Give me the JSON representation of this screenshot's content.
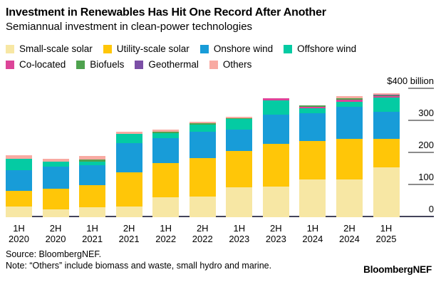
{
  "header": {
    "title": "Investment in Renewables Has Hit One Record After Another",
    "subtitle": "Semiannual investment in clean-power technologies"
  },
  "chart_data": {
    "type": "bar",
    "stacked": true,
    "unit": "$ billion",
    "title": "Investment in Renewables Has Hit One Record After Another",
    "subtitle": "Semiannual investment in clean-power technologies",
    "categories": [
      "1H 2020",
      "2H 2020",
      "1H 2021",
      "2H 2021",
      "1H 2022",
      "2H 2022",
      "1H 2023",
      "2H 2023",
      "1H 2024",
      "2H 2024",
      "1H 2025"
    ],
    "series": [
      {
        "name": "Small-scale solar",
        "color": "#F7E7A4",
        "values": [
          33,
          25,
          31,
          33,
          63,
          64,
          93,
          95,
          117,
          117,
          155
        ]
      },
      {
        "name": "Utility-scale solar",
        "color": "#FFC608",
        "values": [
          50,
          63,
          69,
          108,
          105,
          121,
          113,
          135,
          121,
          128,
          90
        ]
      },
      {
        "name": "Onshore wind",
        "color": "#189CD8",
        "values": [
          63,
          70,
          63,
          90,
          78,
          82,
          67,
          90,
          87,
          100,
          84
        ]
      },
      {
        "name": "Offshore wind",
        "color": "#04CBA3",
        "values": [
          37,
          15,
          10,
          28,
          17,
          22,
          33,
          44,
          15,
          15,
          45
        ]
      },
      {
        "name": "Co-located",
        "color": "#DC4498",
        "values": [
          0,
          0,
          0,
          0,
          0,
          0,
          0,
          7,
          5,
          7,
          3
        ]
      },
      {
        "name": "Biofuels",
        "color": "#4EA24E",
        "values": [
          0,
          0,
          8,
          0,
          3,
          4,
          4,
          0,
          5,
          5,
          3
        ]
      },
      {
        "name": "Geothermal",
        "color": "#7B4FA6",
        "values": [
          0,
          0,
          0,
          0,
          0,
          0,
          0,
          0,
          0,
          0,
          2
        ]
      },
      {
        "name": "Others",
        "color": "#F8AAA2",
        "values": [
          11,
          10,
          10,
          7,
          7,
          5,
          4,
          0,
          0,
          5,
          4
        ]
      }
    ],
    "totals": [
      194,
      183,
      191,
      266,
      273,
      298,
      314,
      371,
      350,
      377,
      386
    ],
    "ylim": [
      0,
      400
    ],
    "yticks": [
      {
        "label": "$400 billion",
        "value": 400
      },
      {
        "label": "300",
        "value": 300
      },
      {
        "label": "200",
        "value": 200
      },
      {
        "label": "100",
        "value": 100
      },
      {
        "label": "0",
        "value": 0
      }
    ],
    "legend_position": "top",
    "grid": false
  },
  "footer": {
    "source": "Source: BloombergNEF.",
    "note": "Note: “Others” include biomass and waste, small hydro and marine.",
    "brand": "BloombergNEF"
  }
}
